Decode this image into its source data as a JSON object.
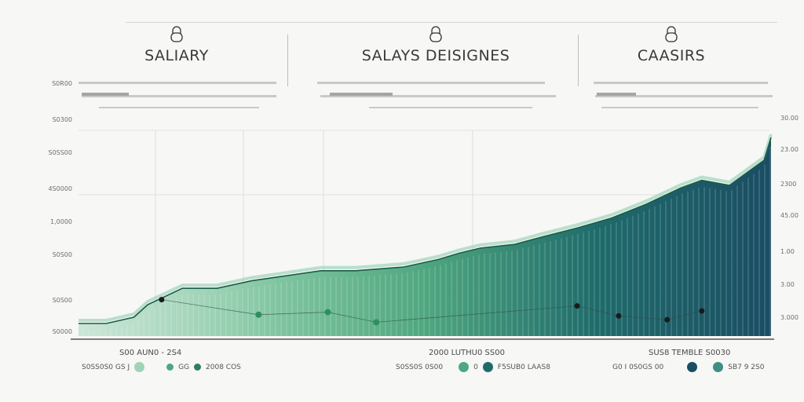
{
  "headers": [
    {
      "title": "SALIARY",
      "icon": "lock-icon"
    },
    {
      "title": "SALAYS DEISIGNES",
      "icon": "lock-icon"
    },
    {
      "title": "CAASIRS",
      "icon": "lock-icon"
    }
  ],
  "y_axis_left": [
    "S0R00",
    "S0300",
    "S0SS00",
    "4S0000",
    "1,0000",
    "S0S00",
    "S0S00",
    "S0000"
  ],
  "y_axis_right": [
    "30.00",
    "23.00",
    "2300",
    "45.00",
    "1.00",
    "3.00",
    "3.000"
  ],
  "x_axis": [
    "S00 AUN0 - 2S4",
    "2000 LUTHU0 SS00",
    "SUS8 TEMBLE S0030"
  ],
  "legend": [
    {
      "labels": [
        "S0SS0S0 GS J",
        "GG",
        "2008 COS"
      ]
    },
    {
      "labels": [
        "S0SS0S 0S00",
        "0",
        "F5SUB0 LAAS8"
      ]
    },
    {
      "labels": [
        "G0 I 0S0GS 00",
        "SB7 9 2S0"
      ]
    }
  ],
  "colors": {
    "light_green": "#a7d8bd",
    "mid_green": "#4fa77f",
    "teal": "#1f6b6b",
    "deep_teal": "#1a4d63",
    "line": "#1a5c46",
    "dot_dark": "#1a1a1a"
  },
  "chart_data": {
    "type": "area",
    "title": "",
    "x": [
      0,
      4,
      8,
      10,
      15,
      20,
      25,
      30,
      35,
      40,
      47,
      52,
      55,
      58,
      63,
      67,
      72,
      77,
      82,
      87,
      90,
      94,
      99,
      100
    ],
    "series": [
      {
        "values": [
          1.0,
          1.0,
          1.5,
          2.5,
          3.8,
          3.8,
          4.4,
          4.8,
          5.2,
          5.2,
          5.5,
          6.1,
          6.6,
          7.0,
          7.3,
          7.9,
          8.6,
          9.4,
          10.5,
          11.8,
          12.4,
          12.0,
          14.0,
          15.8
        ]
      }
    ],
    "markers": [
      {
        "x": 12,
        "y": 2.9
      },
      {
        "x": 26,
        "y": 1.7
      },
      {
        "x": 36,
        "y": 1.9
      },
      {
        "x": 43,
        "y": 1.1
      },
      {
        "x": 72,
        "y": 2.4
      },
      {
        "x": 78,
        "y": 1.6
      },
      {
        "x": 85,
        "y": 1.3
      },
      {
        "x": 90,
        "y": 2.0
      }
    ],
    "xlim": [
      0,
      100
    ],
    "ylim": [
      0,
      18
    ],
    "grid": true
  }
}
